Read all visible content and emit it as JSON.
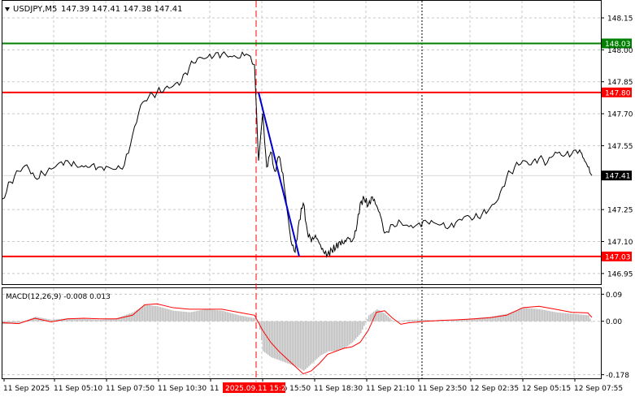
{
  "main_header": {
    "arrow_icon": "triangle-down-icon",
    "symbol": "USDJPY,M5",
    "ohlc": "147.39 147.41 147.38 147.41"
  },
  "macd_header": {
    "label": "MACD(12,26,9) -0.008 0.013"
  },
  "levels": [
    {
      "price": 148.03,
      "label": "148.03",
      "color": "#008000"
    },
    {
      "price": 147.8,
      "label": "147.80",
      "color": "#ff0000"
    },
    {
      "price": 147.03,
      "label": "147.03",
      "color": "#ff0000"
    }
  ],
  "current_price": {
    "price": 147.41,
    "label": "147.41"
  },
  "colors": {
    "price_line": "#000000",
    "trend_line": "#0000cc",
    "macd_hist": "#c0c0c0",
    "macd_signal": "#ff0000",
    "grid": "#c8c8c8",
    "axis": "#000000"
  },
  "chart_data": [
    {
      "type": "line",
      "title": "USDJPY,M5",
      "ylim": [
        146.9,
        148.23
      ],
      "grid": true,
      "price_ticks": [
        "148.15",
        "148.00",
        "147.85",
        "147.70",
        "147.55",
        "147.25",
        "147.10",
        "146.95"
      ],
      "price_tick_values": [
        148.15,
        148.0,
        147.85,
        147.7,
        147.55,
        147.25,
        147.1,
        146.95
      ],
      "time_labels": [
        "11 Sep 2025",
        "11 Sep 05:10",
        "11 Sep 07:50",
        "11 Sep 10:30",
        "11",
        "11 Sep 15:50",
        "11 Sep 18:30",
        "11 Sep 21:10",
        "11 Sep 23:50",
        "12 Sep 02:35",
        "12 Sep 05:15",
        "12 Sep 07:55"
      ],
      "highlight_time": "2025.09.11 15:25",
      "series": [
        {
          "x": [
            0,
            10,
            20,
            30,
            40,
            50,
            60,
            70,
            80,
            90,
            100,
            110,
            120,
            130,
            140,
            150,
            160,
            170,
            180,
            190,
            200,
            210,
            220,
            230,
            240,
            250,
            260,
            270,
            280,
            290,
            300,
            310,
            315,
            320,
            325,
            330,
            335,
            340,
            345,
            350,
            355,
            360,
            365,
            370,
            375,
            380,
            385,
            390,
            395,
            400,
            405,
            410,
            415,
            420,
            425,
            430,
            435,
            440,
            445,
            450,
            455,
            460,
            465,
            470,
            480,
            490,
            500,
            510,
            520,
            530,
            540,
            550,
            560,
            570,
            580,
            590,
            600,
            610,
            620,
            630,
            640,
            650,
            660,
            670,
            680,
            690,
            700,
            710,
            715,
            720,
            725
          ],
          "y": [
            147.3,
            147.38,
            147.43,
            147.46,
            147.4,
            147.42,
            147.44,
            147.47,
            147.48,
            147.46,
            147.45,
            147.46,
            147.45,
            147.45,
            147.44,
            147.46,
            147.6,
            147.74,
            147.78,
            147.8,
            147.82,
            147.83,
            147.85,
            147.92,
            147.96,
            147.96,
            147.97,
            147.98,
            147.97,
            147.96,
            147.98,
            147.93,
            147.48,
            147.7,
            147.45,
            147.52,
            147.43,
            147.5,
            147.42,
            147.25,
            147.1,
            147.05,
            147.2,
            147.28,
            147.15,
            147.1,
            147.13,
            147.09,
            147.05,
            147.04,
            147.06,
            147.07,
            147.1,
            147.09,
            147.12,
            147.1,
            147.15,
            147.28,
            147.3,
            147.27,
            147.31,
            147.27,
            147.22,
            147.14,
            147.18,
            147.19,
            147.17,
            147.18,
            147.2,
            147.19,
            147.18,
            147.17,
            147.2,
            147.22,
            147.21,
            147.23,
            147.26,
            147.3,
            147.4,
            147.45,
            147.48,
            147.46,
            147.49,
            147.47,
            147.52,
            147.5,
            147.51,
            147.53,
            147.49,
            147.45,
            147.41
          ]
        }
      ],
      "trend_line": {
        "x": [
          315,
          365
        ],
        "y": [
          147.8,
          147.03
        ]
      }
    },
    {
      "type": "bar",
      "title": "MACD(12,26,9) -0.008 0.013",
      "ylim": [
        -0.19,
        0.11
      ],
      "ticks": [
        "0.09",
        "0.00",
        "-0.178"
      ],
      "tick_values": [
        0.09,
        0.0,
        -0.178
      ],
      "series": [
        {
          "name": "MACD",
          "x": [
            0,
            20,
            40,
            60,
            80,
            100,
            120,
            140,
            160,
            175,
            190,
            210,
            230,
            250,
            270,
            290,
            310,
            315,
            320,
            330,
            340,
            350,
            360,
            370,
            380,
            390,
            400,
            410,
            420,
            430,
            440,
            450,
            460,
            470,
            480,
            500,
            520,
            540,
            560,
            580,
            600,
            620,
            640,
            660,
            680,
            700,
            720,
            725
          ],
          "y": [
            -0.01,
            -0.005,
            0.015,
            0.005,
            0.01,
            0.008,
            0.005,
            0.01,
            0.03,
            0.055,
            0.05,
            0.035,
            0.03,
            0.04,
            0.035,
            0.02,
            0.01,
            -0.01,
            -0.1,
            -0.12,
            -0.13,
            -0.14,
            -0.15,
            -0.165,
            -0.14,
            -0.115,
            -0.1,
            -0.1,
            -0.09,
            -0.07,
            -0.04,
            0.02,
            0.04,
            0.025,
            0.0,
            0.005,
            0.005,
            0.0,
            0.005,
            0.01,
            0.015,
            0.025,
            0.045,
            0.04,
            0.03,
            0.025,
            0.02,
            -0.008
          ]
        },
        {
          "name": "Signal",
          "x": [
            0,
            20,
            40,
            60,
            80,
            100,
            120,
            140,
            160,
            175,
            190,
            210,
            230,
            250,
            270,
            290,
            310,
            320,
            330,
            340,
            350,
            360,
            370,
            380,
            390,
            400,
            410,
            420,
            430,
            440,
            450,
            460,
            470,
            480,
            490,
            500,
            520,
            540,
            560,
            580,
            600,
            620,
            640,
            660,
            680,
            700,
            720,
            725
          ],
          "y": [
            -0.005,
            -0.008,
            0.01,
            -0.002,
            0.008,
            0.01,
            0.008,
            0.008,
            0.02,
            0.055,
            0.058,
            0.045,
            0.04,
            0.04,
            0.04,
            0.03,
            0.02,
            -0.03,
            -0.07,
            -0.1,
            -0.125,
            -0.15,
            -0.175,
            -0.165,
            -0.14,
            -0.11,
            -0.1,
            -0.09,
            -0.085,
            -0.07,
            -0.03,
            0.03,
            0.035,
            0.01,
            -0.01,
            -0.005,
            0.0,
            0.003,
            0.005,
            0.008,
            0.012,
            0.02,
            0.045,
            0.05,
            0.04,
            0.03,
            0.028,
            0.013
          ]
        }
      ]
    }
  ]
}
